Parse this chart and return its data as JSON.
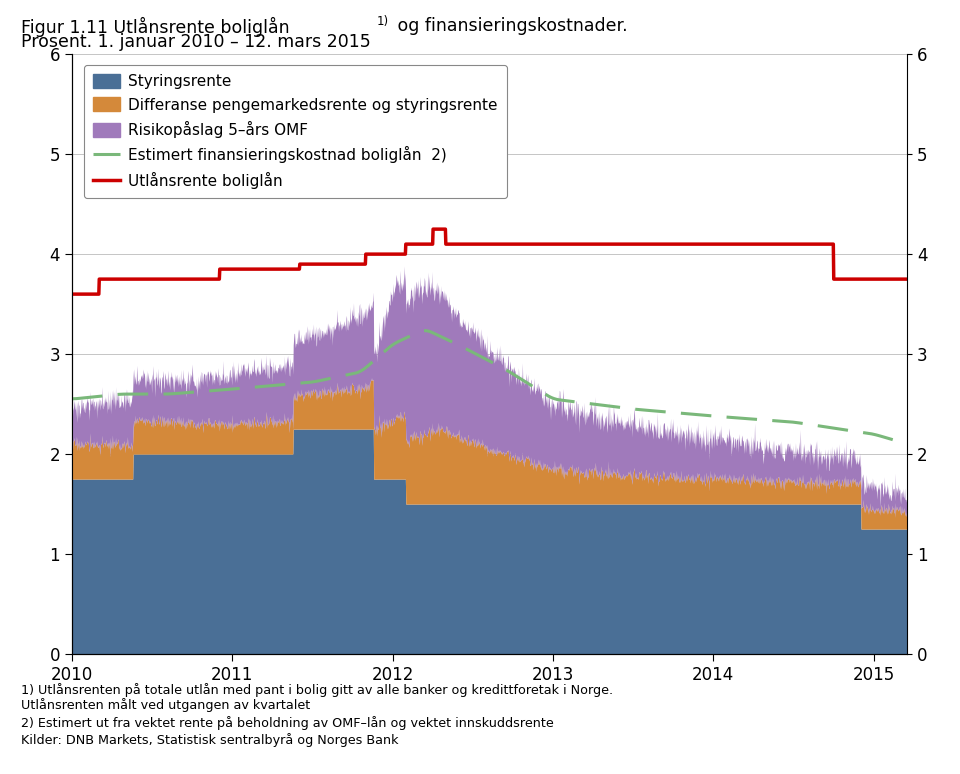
{
  "title_line1": "Figur 1.11 Utlånsrente boliglån",
  "title_sup": "1)",
  "title_line1_end": " og finansieringskostnader.",
  "title_line2": "Prosent. 1. januar 2010 – 12. mars 2015",
  "footnote1": "1) Utlånsrenten på totale utlån med pant i bolig gitt av alle banker og kredittforetak i Norge.",
  "footnote2": "Utlånsrenten målt ved utgangen av kvartalet",
  "footnote3": "2) Estimert ut fra vektet rente på beholdning av OMF–lån og vektet innskuddsrente",
  "footnote4": "Kilder: DNB Markets, Statistisk sentralbyrå og Norges Bank",
  "color_styringsrente": "#4a6f96",
  "color_differanse": "#d4893a",
  "color_risikopaaslag": "#a07abb",
  "color_estimert": "#7ab87a",
  "color_utlaansrente": "#cc0000",
  "legend_styringsrente": "Styringsrente",
  "legend_differanse": "Differanse pengemarkedsrente og styringsrente",
  "legend_risikopaaslag": "Risikopåslag 5–års OMF",
  "legend_estimert": "Estimert finansieringskostnad boliglån",
  "legend_estimert_sup": "2)",
  "legend_utlaansrente": "Utlånsrente boliglån",
  "ylim": [
    0,
    6
  ],
  "yticks": [
    0,
    1,
    2,
    3,
    4,
    5,
    6
  ],
  "xticks": [
    2010,
    2011,
    2012,
    2013,
    2014,
    2015
  ],
  "xticklabels": [
    "2010",
    "2011",
    "2012",
    "2013",
    "2014",
    "2015"
  ]
}
